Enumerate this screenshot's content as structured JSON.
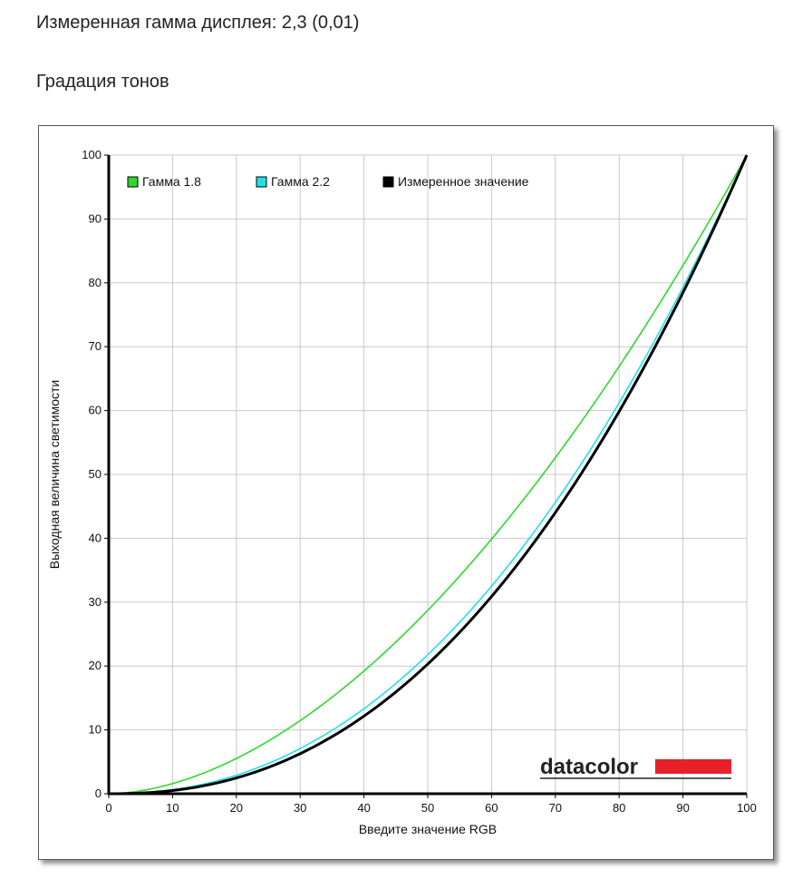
{
  "header": {
    "measured_gamma": "Измеренная гамма дисплея: 2,3 (0,01)",
    "section_title": "Градация тонов"
  },
  "logo": {
    "text": "datacolor",
    "bar_color": "#e8202a"
  },
  "chart_data": {
    "type": "line",
    "xlabel": "Введите значение RGB",
    "ylabel": "Выходная величина светимости",
    "xlim": [
      0,
      100
    ],
    "ylim": [
      0,
      100
    ],
    "x_ticks": [
      "0",
      "10",
      "20",
      "30",
      "40",
      "50",
      "60",
      "70",
      "80",
      "90",
      "100"
    ],
    "y_ticks": [
      "0",
      "10",
      "20",
      "30",
      "40",
      "50",
      "60",
      "70",
      "80",
      "90",
      "100"
    ],
    "grid": true,
    "legend_position": "top-left",
    "series": [
      {
        "name": "Гамма 1.8",
        "color": "#2ed82e",
        "gamma": 1.8
      },
      {
        "name": "Гамма 2.2",
        "color": "#22e0e8",
        "gamma": 2.2
      },
      {
        "name": "Измеренное значение",
        "color": "#000000",
        "gamma": 2.3
      }
    ]
  }
}
